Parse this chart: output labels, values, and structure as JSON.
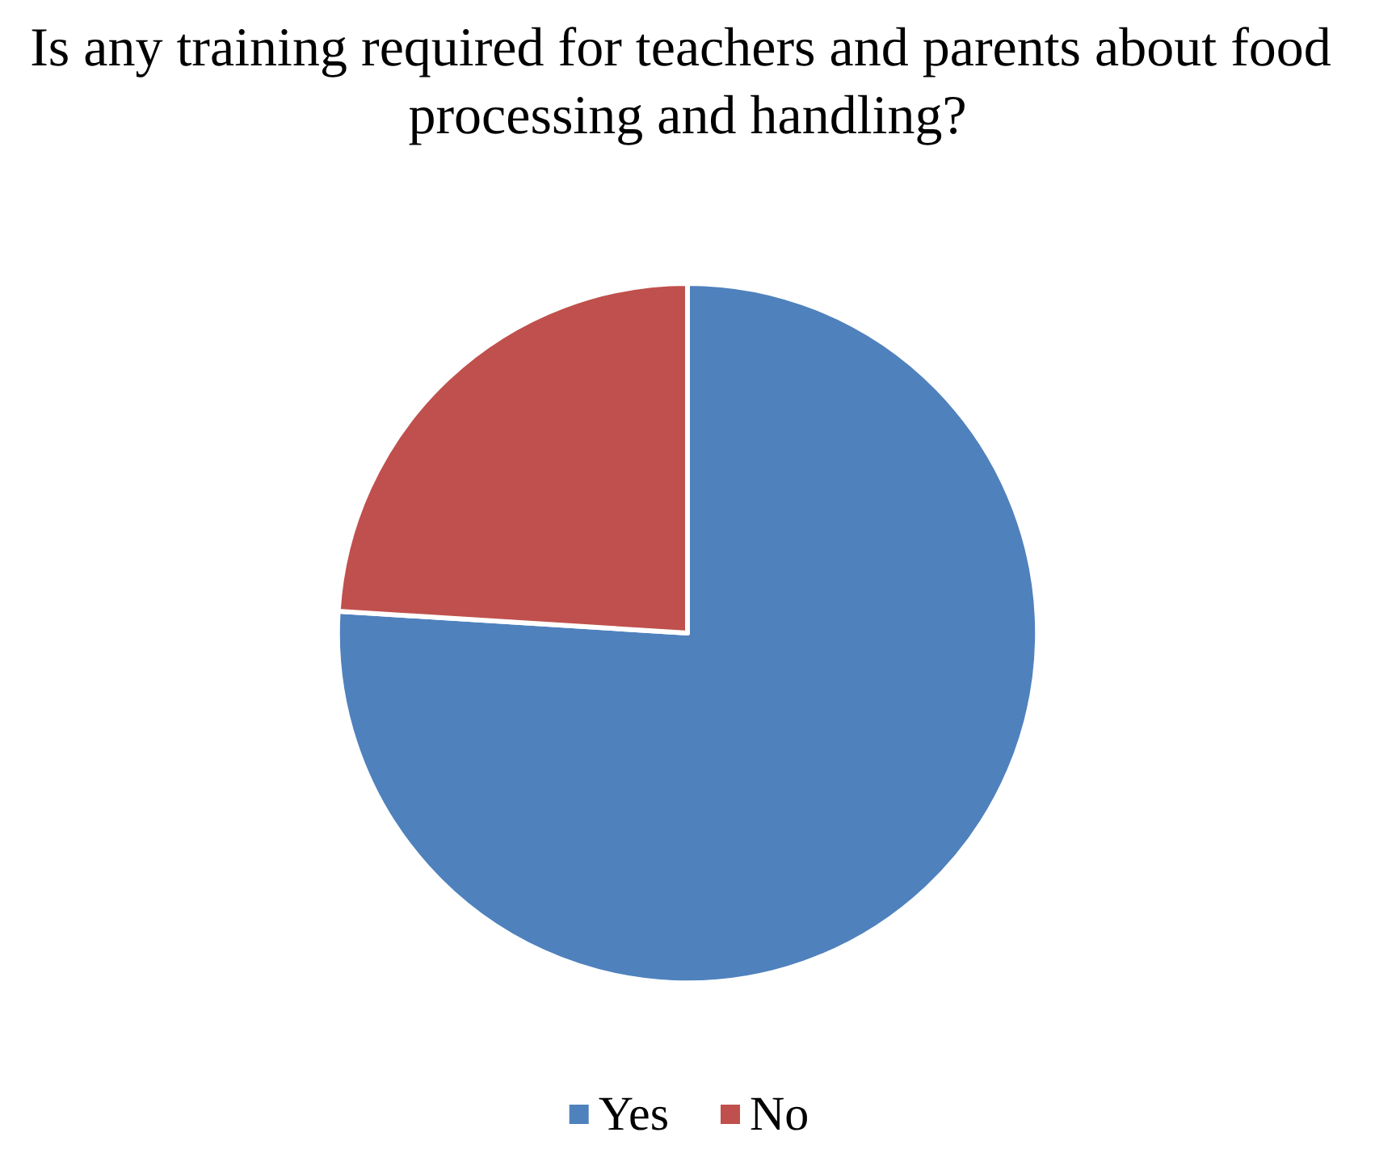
{
  "chart_data": {
    "type": "pie",
    "title": "Is any training required for teachers and parents about food processing and handling?",
    "categories": [
      "Yes",
      "No"
    ],
    "values": [
      76,
      24
    ],
    "colors": [
      "#4f81bd",
      "#c0504d"
    ],
    "legend": "bottom"
  }
}
